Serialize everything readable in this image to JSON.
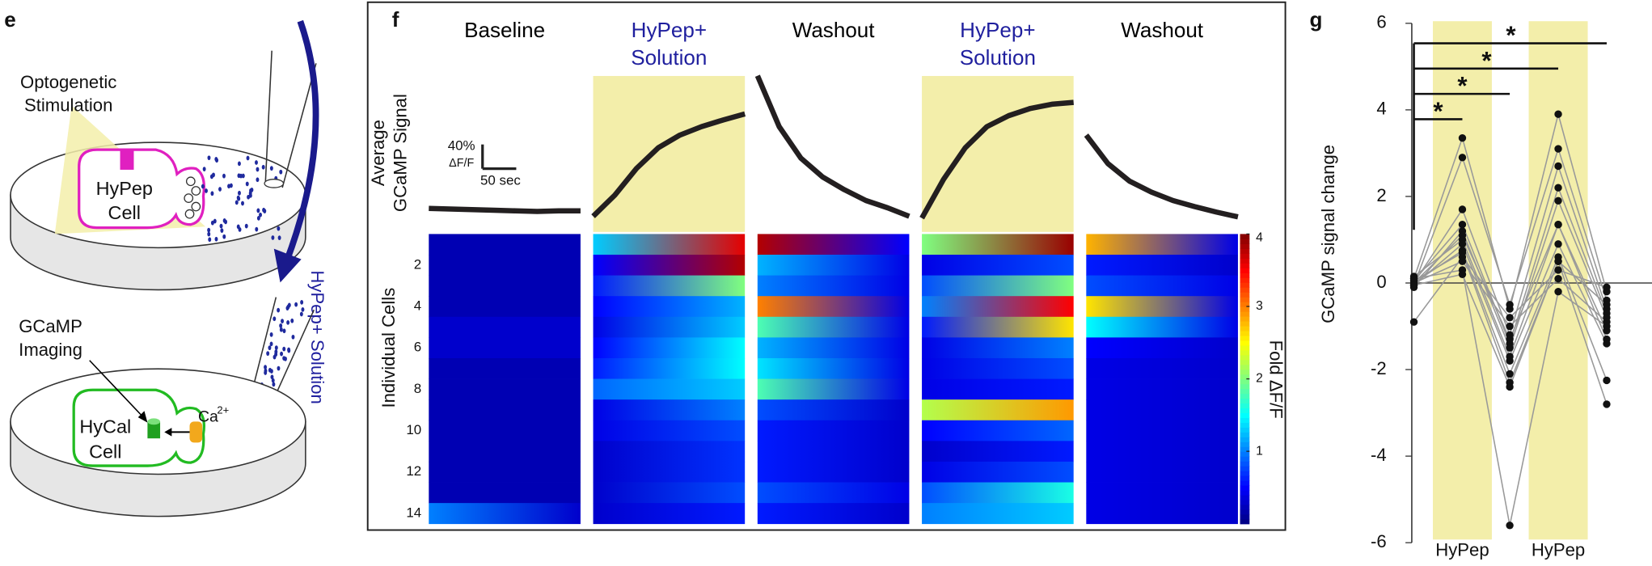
{
  "panel_e": {
    "label": "e",
    "stimulation": [
      "Optogenetic",
      "Stimulation"
    ],
    "source_cell": [
      "HyPep",
      "Cell"
    ],
    "solution": "HyPep+ Solution",
    "imaging": [
      "GCaMP",
      "Imaging"
    ],
    "target_cell": [
      "HyCal",
      "Cell"
    ],
    "ion": "Ca",
    "ion_charge": "2+"
  },
  "panel_f": {
    "label": "f",
    "trace_label": [
      "Average",
      "GCaMP Signal"
    ],
    "scale_bar": {
      "amplitude": "40%",
      "amplitude_unit": "ΔF/F",
      "time": "50 sec"
    },
    "row_axis_label": "Individual Cells",
    "row_ticks": [
      2,
      4,
      6,
      8,
      10,
      12,
      14
    ],
    "highlight_color": "#f3eeaa",
    "trace_color": "#231f20",
    "colorbar": {
      "label": "Fold ΔF/F",
      "range": [
        0,
        4
      ],
      "ticks": [
        1,
        2,
        3,
        4
      ],
      "colormap": "jet"
    },
    "columns": [
      {
        "title": [
          "Baseline"
        ],
        "title_color": "#000000",
        "highlight": false,
        "trace": [
          4,
          3,
          2,
          1,
          0,
          -1,
          0,
          0
        ],
        "cells": [
          [
            0.2,
            0.2
          ],
          [
            0.2,
            0.2
          ],
          [
            0.2,
            0.2
          ],
          [
            0.2,
            0.2
          ],
          [
            0.3,
            0.3
          ],
          [
            0.3,
            0.3
          ],
          [
            0.2,
            0.2
          ],
          [
            0.2,
            0.2
          ],
          [
            0.2,
            0.2
          ],
          [
            0.2,
            0.2
          ],
          [
            0.2,
            0.2
          ],
          [
            0.2,
            0.2
          ],
          [
            0.2,
            0.2
          ],
          [
            1.0,
            0.3
          ]
        ]
      },
      {
        "title": [
          "HyPep+",
          "Solution"
        ],
        "title_color": "#1f1f9e",
        "highlight": true,
        "trace": [
          -9,
          26,
          70,
          104,
          125,
          139,
          150,
          160
        ],
        "cells": [
          [
            1.3,
            3.6
          ],
          [
            0.5,
            3.8
          ],
          [
            0.6,
            2.0
          ],
          [
            0.5,
            1.2
          ],
          [
            0.4,
            1.3
          ],
          [
            0.5,
            1.5
          ],
          [
            0.6,
            1.5
          ],
          [
            0.9,
            1.3
          ],
          [
            0.4,
            1.0
          ],
          [
            0.4,
            0.8
          ],
          [
            0.3,
            0.7
          ],
          [
            0.3,
            0.7
          ],
          [
            0.3,
            0.8
          ],
          [
            0.3,
            0.6
          ]
        ]
      },
      {
        "title": [
          "Washout"
        ],
        "title_color": "#000000",
        "highlight": false,
        "trace": [
          223,
          139,
          87,
          56,
          35,
          17,
          5,
          -9
        ],
        "cells": [
          [
            3.8,
            0.5
          ],
          [
            1.2,
            0.4
          ],
          [
            1.0,
            0.4
          ],
          [
            3.0,
            0.4
          ],
          [
            1.8,
            0.4
          ],
          [
            1.2,
            0.4
          ],
          [
            1.4,
            0.4
          ],
          [
            1.8,
            0.4
          ],
          [
            0.8,
            0.3
          ],
          [
            0.6,
            0.3
          ],
          [
            0.6,
            0.3
          ],
          [
            0.6,
            0.3
          ],
          [
            0.8,
            0.4
          ],
          [
            0.6,
            0.3
          ]
        ]
      },
      {
        "title": [
          "HyPep+",
          "Solution"
        ],
        "title_color": "#1f1f9e",
        "highlight": true,
        "trace": [
          -12,
          52,
          104,
          139,
          157,
          169,
          176,
          179
        ],
        "cells": [
          [
            2.0,
            3.9
          ],
          [
            0.4,
            0.8
          ],
          [
            0.8,
            2.0
          ],
          [
            1.0,
            3.5
          ],
          [
            0.6,
            2.6
          ],
          [
            0.4,
            1.0
          ],
          [
            0.4,
            0.8
          ],
          [
            0.4,
            0.6
          ],
          [
            2.2,
            2.9
          ],
          [
            0.5,
            0.9
          ],
          [
            0.3,
            0.6
          ],
          [
            0.4,
            0.8
          ],
          [
            0.8,
            1.6
          ],
          [
            1.0,
            1.3
          ]
        ]
      },
      {
        "title": [
          "Washout"
        ],
        "title_color": "#000000",
        "highlight": false,
        "trace": [
          125,
          78,
          49,
          31,
          17,
          7,
          -2,
          -10
        ],
        "cells": [
          [
            2.8,
            0.4
          ],
          [
            0.6,
            0.3
          ],
          [
            0.8,
            0.4
          ],
          [
            2.6,
            0.4
          ],
          [
            1.5,
            0.4
          ],
          [
            0.5,
            0.3
          ],
          [
            0.4,
            0.3
          ],
          [
            0.4,
            0.3
          ],
          [
            0.4,
            0.3
          ],
          [
            0.4,
            0.3
          ],
          [
            0.4,
            0.3
          ],
          [
            0.4,
            0.3
          ],
          [
            0.4,
            0.3
          ],
          [
            0.4,
            0.3
          ]
        ]
      }
    ]
  },
  "chart_data": {
    "type": "line",
    "label": "g",
    "y_label": "GCaMP signal change",
    "categories": [
      null,
      "HyPep",
      null,
      "HyPep",
      null
    ],
    "highlight": [
      false,
      true,
      false,
      true,
      false
    ],
    "highlight_color": "#f3eeaa",
    "ylim": [
      -6,
      6
    ],
    "yticks": [
      -6,
      -4,
      -2,
      0,
      2,
      4,
      6
    ],
    "line_color": "#999999",
    "marker_color": "#111111",
    "significance": [
      "*",
      "*",
      "*",
      "*"
    ],
    "series": [
      {
        "values": [
          0.1,
          3.35,
          -0.6,
          3.9,
          -0.2
        ]
      },
      {
        "values": [
          -0.05,
          2.9,
          -0.5,
          3.1,
          -0.4
        ]
      },
      {
        "values": [
          0.0,
          1.7,
          -1.2,
          2.7,
          -0.6
        ]
      },
      {
        "values": [
          0.05,
          1.35,
          -1.4,
          2.2,
          -0.7
        ]
      },
      {
        "values": [
          -0.1,
          1.2,
          -1.5,
          1.9,
          -0.8
        ]
      },
      {
        "values": [
          0.0,
          1.1,
          -1.3,
          1.35,
          -1.1
        ]
      },
      {
        "values": [
          0.15,
          1.0,
          -1.7,
          1.35,
          -1.3
        ]
      },
      {
        "values": [
          -0.05,
          0.9,
          -1.8,
          0.9,
          -1.4
        ]
      },
      {
        "values": [
          0.0,
          0.75,
          -2.1,
          0.6,
          -2.25
        ]
      },
      {
        "values": [
          0.05,
          0.7,
          -2.3,
          0.5,
          -0.5
        ]
      },
      {
        "values": [
          -0.9,
          0.6,
          -0.8,
          0.3,
          -0.1
        ]
      },
      {
        "values": [
          0.0,
          0.5,
          -1.0,
          0.1,
          -0.9
        ]
      },
      {
        "values": [
          0.1,
          0.3,
          -5.6,
          -0.2,
          -1.0
        ]
      },
      {
        "values": [
          -0.05,
          0.2,
          -2.4,
          0.5,
          -2.8
        ]
      }
    ]
  }
}
